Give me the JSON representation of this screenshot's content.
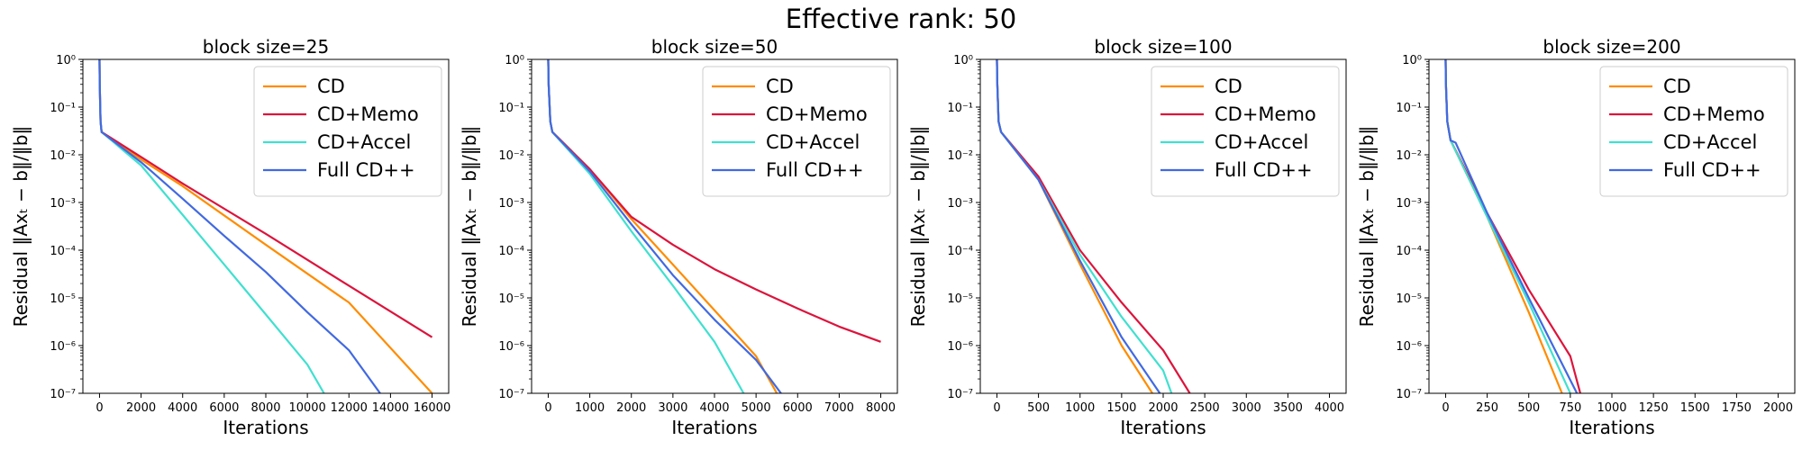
{
  "figure": {
    "title": "Effective rank: 50"
  },
  "chart_data": [
    {
      "type": "line",
      "title": "block size=25",
      "xlabel": "Iterations",
      "ylabel": "Residual ‖Axₜ − b‖/‖b‖",
      "yscale": "log",
      "xlim": [
        -800,
        16800
      ],
      "ylim": [
        1e-07,
        1
      ],
      "xticks": [
        0,
        2000,
        4000,
        6000,
        8000,
        10000,
        12000,
        14000,
        16000
      ],
      "yticks": [
        1e-07,
        1e-06,
        1e-05,
        0.0001,
        0.001,
        0.01,
        0.1,
        1
      ],
      "ytick_labels": [
        "10⁻⁷",
        "10⁻⁶",
        "10⁻⁵",
        "10⁻⁴",
        "10⁻³",
        "10⁻²",
        "10⁻¹",
        "10⁰"
      ],
      "legend": "top-right",
      "series": [
        {
          "name": "CD",
          "color": "#ff8c00",
          "x": [
            0,
            10,
            50,
            100,
            2000,
            4000,
            8000,
            12000,
            16000
          ],
          "y": [
            1.0,
            0.3,
            0.05,
            0.03,
            0.008,
            0.0022,
            0.00013,
            8e-06,
            1e-07
          ]
        },
        {
          "name": "CD+Memo",
          "color": "#dc143c",
          "x": [
            0,
            10,
            50,
            100,
            2000,
            4000,
            8000,
            12000,
            16000
          ],
          "y": [
            1.0,
            0.3,
            0.05,
            0.03,
            0.009,
            0.0025,
            0.00022,
            1.8e-05,
            1.5e-06
          ]
        },
        {
          "name": "CD+Accel",
          "color": "#40e0d0",
          "x": [
            0,
            10,
            50,
            100,
            2000,
            4000,
            6000,
            8000,
            10000,
            10800
          ],
          "y": [
            1.0,
            0.3,
            0.05,
            0.03,
            0.006,
            0.00055,
            5e-05,
            4.5e-06,
            4e-07,
            1e-07
          ]
        },
        {
          "name": "Full CD++",
          "color": "#4169e1",
          "x": [
            0,
            10,
            50,
            100,
            2000,
            4000,
            6000,
            8000,
            10000,
            12000,
            13500
          ],
          "y": [
            1.0,
            0.3,
            0.05,
            0.03,
            0.007,
            0.0012,
            0.0002,
            3.5e-05,
            5e-06,
            8e-07,
            1e-07
          ]
        }
      ]
    },
    {
      "type": "line",
      "title": "block size=50",
      "xlabel": "Iterations",
      "ylabel": "Residual ‖Axₜ − b‖/‖b‖",
      "yscale": "log",
      "xlim": [
        -400,
        8400
      ],
      "ylim": [
        1e-07,
        1
      ],
      "xticks": [
        0,
        1000,
        2000,
        3000,
        4000,
        5000,
        6000,
        7000,
        8000
      ],
      "yticks": [
        1e-07,
        1e-06,
        1e-05,
        0.0001,
        0.001,
        0.01,
        0.1,
        1
      ],
      "ytick_labels": [
        "10⁻⁷",
        "10⁻⁶",
        "10⁻⁵",
        "10⁻⁴",
        "10⁻³",
        "10⁻²",
        "10⁻¹",
        "10⁰"
      ],
      "legend": "top-right",
      "series": [
        {
          "name": "CD",
          "color": "#ff8c00",
          "x": [
            0,
            10,
            50,
            100,
            1000,
            2000,
            3000,
            4000,
            5000,
            5500
          ],
          "y": [
            1.0,
            0.3,
            0.05,
            0.03,
            0.005,
            0.00045,
            5e-05,
            5.5e-06,
            6e-07,
            1e-07
          ]
        },
        {
          "name": "CD+Memo",
          "color": "#dc143c",
          "x": [
            0,
            10,
            50,
            100,
            1000,
            2000,
            3000,
            4000,
            5000,
            6000,
            7000,
            8000
          ],
          "y": [
            1.0,
            0.3,
            0.05,
            0.03,
            0.005,
            0.0005,
            0.00013,
            4e-05,
            1.5e-05,
            6e-06,
            2.5e-06,
            1.2e-06
          ]
        },
        {
          "name": "CD+Accel",
          "color": "#40e0d0",
          "x": [
            0,
            10,
            50,
            100,
            1000,
            2000,
            3000,
            4000,
            4700
          ],
          "y": [
            1.0,
            0.3,
            0.05,
            0.03,
            0.004,
            0.00025,
            1.8e-05,
            1.2e-06,
            1e-07
          ]
        },
        {
          "name": "Full CD++",
          "color": "#4169e1",
          "x": [
            0,
            10,
            50,
            100,
            1000,
            2000,
            3000,
            4000,
            5000,
            5600
          ],
          "y": [
            1.0,
            0.3,
            0.05,
            0.03,
            0.0045,
            0.00035,
            3e-05,
            3.5e-06,
            5e-07,
            1e-07
          ]
        }
      ]
    },
    {
      "type": "line",
      "title": "block size=100",
      "xlabel": "Iterations",
      "ylabel": "Residual ‖Axₜ − b‖/‖b‖",
      "yscale": "log",
      "xlim": [
        -200,
        4200
      ],
      "ylim": [
        1e-07,
        1
      ],
      "xticks": [
        0,
        500,
        1000,
        1500,
        2000,
        2500,
        3000,
        3500,
        4000
      ],
      "yticks": [
        1e-07,
        1e-06,
        1e-05,
        0.0001,
        0.001,
        0.01,
        0.1,
        1
      ],
      "ytick_labels": [
        "10⁻⁷",
        "10⁻⁶",
        "10⁻⁵",
        "10⁻⁴",
        "10⁻³",
        "10⁻²",
        "10⁻¹",
        "10⁰"
      ],
      "legend": "top-right",
      "series": [
        {
          "name": "CD",
          "color": "#ff8c00",
          "x": [
            0,
            5,
            20,
            50,
            500,
            1000,
            1500,
            1870
          ],
          "y": [
            1.0,
            0.3,
            0.05,
            0.03,
            0.003,
            5e-05,
            1e-06,
            1e-07
          ]
        },
        {
          "name": "CD+Memo",
          "color": "#dc143c",
          "x": [
            0,
            5,
            20,
            50,
            500,
            1000,
            1500,
            2000,
            2320
          ],
          "y": [
            1.0,
            0.3,
            0.05,
            0.03,
            0.0035,
            0.0001,
            8e-06,
            8e-07,
            1e-07
          ]
        },
        {
          "name": "CD+Accel",
          "color": "#40e0d0",
          "x": [
            0,
            5,
            20,
            50,
            500,
            1000,
            1500,
            2000,
            2100
          ],
          "y": [
            1.0,
            0.3,
            0.05,
            0.03,
            0.003,
            8e-05,
            4e-06,
            3e-07,
            1e-07
          ]
        },
        {
          "name": "Full CD++",
          "color": "#4169e1",
          "x": [
            0,
            5,
            20,
            50,
            500,
            1000,
            1500,
            1960
          ],
          "y": [
            1.0,
            0.3,
            0.05,
            0.03,
            0.003,
            6e-05,
            1.5e-06,
            1e-07
          ]
        }
      ]
    },
    {
      "type": "line",
      "title": "block size=200",
      "xlabel": "Iterations",
      "ylabel": "Residual ‖Axₜ − b‖/‖b‖",
      "yscale": "log",
      "xlim": [
        -100,
        2100
      ],
      "ylim": [
        1e-07,
        1
      ],
      "xticks": [
        0,
        250,
        500,
        750,
        1000,
        1250,
        1500,
        1750,
        2000
      ],
      "yticks": [
        1e-07,
        1e-06,
        1e-05,
        0.0001,
        0.001,
        0.01,
        0.1,
        1
      ],
      "ytick_labels": [
        "10⁻⁷",
        "10⁻⁶",
        "10⁻⁵",
        "10⁻⁴",
        "10⁻³",
        "10⁻²",
        "10⁻¹",
        "10⁰"
      ],
      "legend": "top-right",
      "series": [
        {
          "name": "CD",
          "color": "#ff8c00",
          "x": [
            0,
            2,
            10,
            30,
            250,
            500,
            700
          ],
          "y": [
            1.0,
            0.3,
            0.05,
            0.02,
            0.0005,
            5e-06,
            1e-07
          ]
        },
        {
          "name": "CD+Memo",
          "color": "#dc143c",
          "x": [
            0,
            2,
            10,
            30,
            250,
            500,
            750,
            810
          ],
          "y": [
            1.0,
            0.3,
            0.05,
            0.02,
            0.0006,
            1.5e-05,
            6e-07,
            1e-07
          ]
        },
        {
          "name": "CD+Accel",
          "color": "#40e0d0",
          "x": [
            0,
            2,
            10,
            30,
            250,
            500,
            750
          ],
          "y": [
            1.0,
            0.3,
            0.05,
            0.02,
            0.0005,
            8e-06,
            1e-07
          ]
        },
        {
          "name": "Full CD++",
          "color": "#4169e1",
          "x": [
            0,
            2,
            10,
            30,
            60,
            250,
            500,
            790
          ],
          "y": [
            1.0,
            0.3,
            0.05,
            0.02,
            0.018,
            0.0006,
            1e-05,
            1e-07
          ]
        }
      ]
    }
  ]
}
